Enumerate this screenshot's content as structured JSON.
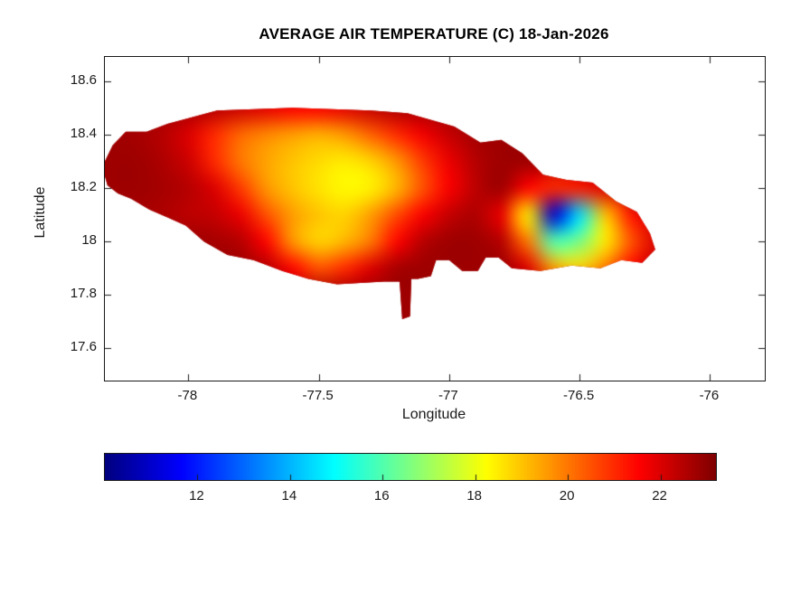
{
  "colors": {
    "background": "#ffffff",
    "axis": "#1a1a1a",
    "coast_hot": "#9e0000",
    "cold_spot": "#0000cd"
  },
  "chart_data": {
    "type": "heatmap",
    "title": "AVERAGE AIR TEMPERATURE (C) 18-Jan-2026",
    "xlabel": "Longitude",
    "ylabel": "Latitude",
    "xlim": [
      -78.32,
      -75.79
    ],
    "ylim": [
      17.48,
      18.69
    ],
    "xticks": [
      -78,
      -77.5,
      -77,
      -76.5,
      -76
    ],
    "xtick_labels": [
      "-78",
      "-77.5",
      "-77",
      "-76.5",
      "-76"
    ],
    "yticks": [
      17.6,
      17.8,
      18,
      18.2,
      18.4,
      18.6
    ],
    "ytick_labels": [
      "17.6",
      "17.8",
      "18",
      "18.2",
      "18.4",
      "18.6"
    ],
    "colormap": "jet",
    "clim": [
      10,
      23.2
    ],
    "colorbar": {
      "orientation": "horizontal",
      "ticks": [
        12,
        14,
        16,
        18,
        20,
        22
      ],
      "tick_labels": [
        "12",
        "14",
        "16",
        "18",
        "20",
        "22"
      ]
    },
    "island_outline": [
      [
        -78.31,
        18.21
      ],
      [
        -78.33,
        18.28
      ],
      [
        -78.29,
        18.36
      ],
      [
        -78.24,
        18.41
      ],
      [
        -78.16,
        18.41
      ],
      [
        -78.08,
        18.44
      ],
      [
        -77.89,
        18.49
      ],
      [
        -77.6,
        18.5
      ],
      [
        -77.3,
        18.49
      ],
      [
        -77.16,
        18.48
      ],
      [
        -76.98,
        18.43
      ],
      [
        -76.88,
        18.37
      ],
      [
        -76.8,
        18.38
      ],
      [
        -76.72,
        18.33
      ],
      [
        -76.64,
        18.25
      ],
      [
        -76.55,
        18.23
      ],
      [
        -76.45,
        18.22
      ],
      [
        -76.36,
        18.15
      ],
      [
        -76.28,
        18.11
      ],
      [
        -76.23,
        18.03
      ],
      [
        -76.21,
        17.97
      ],
      [
        -76.26,
        17.92
      ],
      [
        -76.34,
        17.93
      ],
      [
        -76.42,
        17.9
      ],
      [
        -76.53,
        17.91
      ],
      [
        -76.65,
        17.89
      ],
      [
        -76.76,
        17.9
      ],
      [
        -76.81,
        17.94
      ],
      [
        -76.86,
        17.94
      ],
      [
        -76.89,
        17.89
      ],
      [
        -76.95,
        17.89
      ],
      [
        -77.0,
        17.93
      ],
      [
        -77.05,
        17.93
      ],
      [
        -77.07,
        17.87
      ],
      [
        -77.12,
        17.86
      ],
      [
        -77.145,
        17.86
      ],
      [
        -77.15,
        17.72
      ],
      [
        -77.18,
        17.71
      ],
      [
        -77.19,
        17.85
      ],
      [
        -77.25,
        17.85
      ],
      [
        -77.43,
        17.84
      ],
      [
        -77.54,
        17.86
      ],
      [
        -77.64,
        17.89
      ],
      [
        -77.75,
        17.93
      ],
      [
        -77.85,
        17.95
      ],
      [
        -77.94,
        18.0
      ],
      [
        -78.01,
        18.06
      ],
      [
        -78.08,
        18.09
      ],
      [
        -78.15,
        18.12
      ],
      [
        -78.22,
        18.16
      ],
      [
        -78.27,
        18.18
      ]
    ],
    "grid": {
      "lon_edge_start": -78.35,
      "lon_step": 0.1,
      "lat_edge_start": 18.55,
      "lat_step": -0.1,
      "nrows": 9,
      "ncols": 22,
      "values": [
        [
          null,
          null,
          null,
          22.7,
          22.5,
          22.2,
          21.9,
          21.6,
          21.6,
          21.9,
          22.3,
          22.6,
          22.7,
          null,
          null,
          null,
          null,
          null,
          null,
          null,
          null,
          null
        ],
        [
          22.8,
          22.7,
          22.5,
          22.0,
          21.0,
          20.2,
          19.8,
          19.5,
          19.3,
          19.6,
          20.3,
          21.0,
          21.7,
          22.3,
          22.7,
          22.8,
          null,
          null,
          null,
          null,
          null,
          null
        ],
        [
          22.8,
          22.8,
          22.6,
          22.2,
          21.0,
          20.0,
          19.4,
          19.0,
          18.7,
          18.5,
          18.8,
          19.6,
          20.8,
          21.8,
          22.5,
          22.8,
          22.8,
          null,
          null,
          null,
          null,
          null
        ],
        [
          22.8,
          22.8,
          22.7,
          22.5,
          22.0,
          20.8,
          19.6,
          19.0,
          18.6,
          18.3,
          18.4,
          19.2,
          20.5,
          21.6,
          22.4,
          22.8,
          21.5,
          21.0,
          21.2,
          22.0,
          null,
          null
        ],
        [
          22.7,
          22.7,
          22.6,
          22.4,
          22.3,
          21.8,
          20.5,
          19.5,
          19.0,
          18.8,
          19.5,
          20.6,
          21.6,
          22.3,
          22.6,
          21.8,
          18.5,
          11.0,
          14.5,
          19.0,
          21.3,
          22.3
        ],
        [
          null,
          null,
          22.8,
          22.8,
          22.7,
          22.5,
          21.5,
          19.6,
          18.8,
          19.2,
          20.0,
          21.5,
          22.5,
          22.8,
          22.8,
          22.5,
          20.0,
          16.0,
          16.5,
          18.5,
          20.5,
          22.0
        ],
        [
          null,
          null,
          null,
          22.8,
          22.8,
          22.8,
          22.5,
          21.5,
          20.5,
          21.0,
          22.0,
          22.7,
          22.8,
          22.8,
          22.8,
          22.8,
          22.0,
          19.5,
          18.8,
          20.0,
          21.5,
          22.5
        ],
        [
          null,
          null,
          null,
          null,
          22.8,
          22.8,
          22.8,
          22.8,
          22.8,
          22.8,
          22.8,
          22.8,
          22.8,
          null,
          null,
          null,
          null,
          null,
          null,
          null,
          null,
          null
        ],
        [
          null,
          null,
          null,
          null,
          null,
          null,
          null,
          null,
          null,
          null,
          22.8,
          22.8,
          null,
          null,
          null,
          null,
          null,
          null,
          null,
          null,
          null,
          null
        ]
      ]
    }
  }
}
